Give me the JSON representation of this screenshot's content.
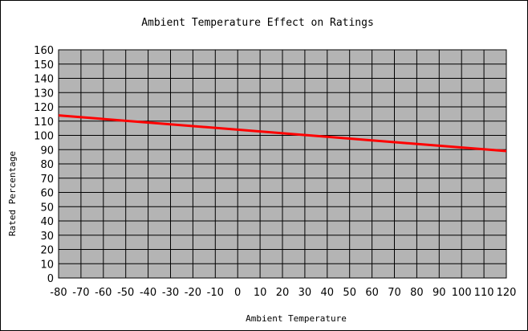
{
  "chart_data": {
    "type": "line",
    "title": "Ambient Temperature Effect on Ratings",
    "xlabel": "Ambient Temperature",
    "ylabel": "Rated Percentage",
    "xlim": [
      -80,
      120
    ],
    "ylim": [
      0,
      160
    ],
    "x_ticks": [
      -80,
      -70,
      -60,
      -50,
      -40,
      -30,
      -20,
      -10,
      0,
      10,
      20,
      30,
      40,
      50,
      60,
      70,
      80,
      90,
      100,
      110,
      120
    ],
    "y_ticks": [
      0,
      10,
      20,
      30,
      40,
      50,
      60,
      70,
      80,
      90,
      100,
      110,
      120,
      130,
      140,
      150,
      160
    ],
    "grid": true,
    "legend": "none",
    "plot_background": "#b4b4b4",
    "series": [
      {
        "color": "#ff0000",
        "x": [
          -80,
          120
        ],
        "y": [
          114,
          89
        ]
      }
    ]
  }
}
